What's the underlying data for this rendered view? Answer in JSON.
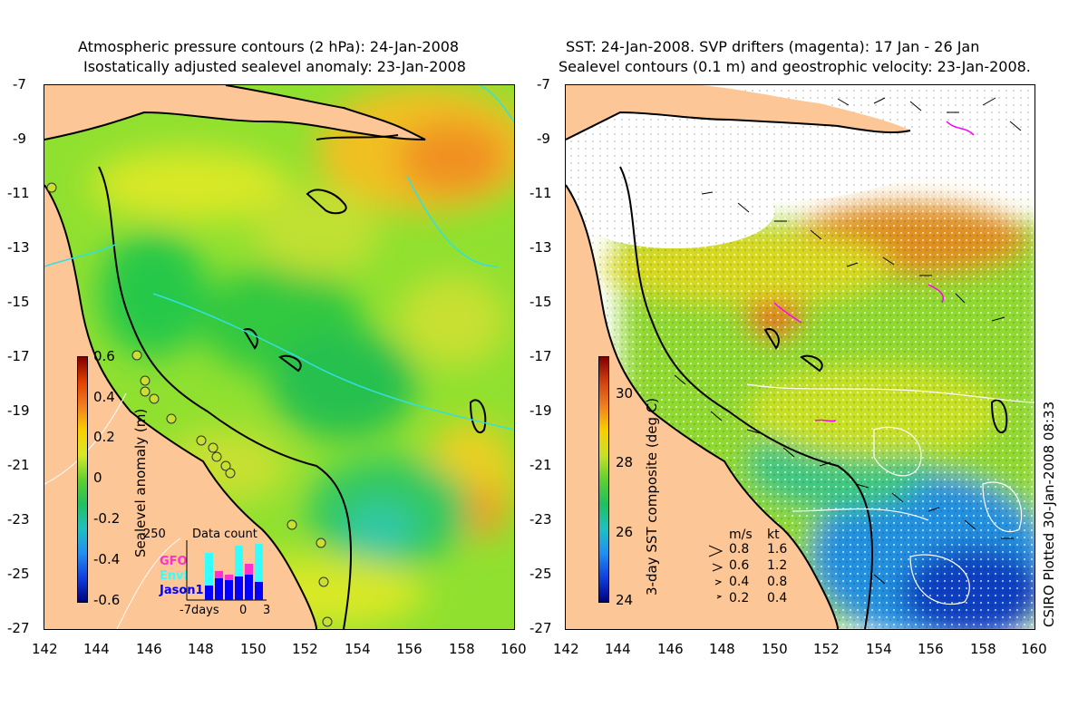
{
  "left": {
    "title_line1": "Atmospheric pressure contours (2 hPa): 24-Jan-2008",
    "title_line2": "Isostatically adjusted sealevel anomaly: 23-Jan-2008",
    "colorbar_label": "Sealevel anomaly (m)",
    "colorbar_ticks": [
      "0.6",
      "0.4",
      "0.2",
      "0",
      "-0.2",
      "-0.4",
      "-0.6"
    ],
    "colorbar_range": [
      -0.6,
      0.6
    ],
    "inset": {
      "max_label": "250",
      "title": "Data count",
      "legend": [
        {
          "name": "GFO",
          "color": "#ff33cc"
        },
        {
          "name": "Envi",
          "color": "#33ffff"
        },
        {
          "name": "Jason1",
          "color": "#0000ff"
        }
      ],
      "x_labels": [
        "-7days",
        "0",
        "3"
      ]
    }
  },
  "right": {
    "title_line1": "SST: 24-Jan-2008. SVP drifters (magenta): 17 Jan - 26 Jan",
    "title_line2": "Sealevel contours (0.1 m) and geostrophic velocity: 23-Jan-2008.",
    "colorbar_label": "3-day SST composite (deg C)",
    "colorbar_ticks": [
      "30",
      "28",
      "26",
      "24"
    ],
    "velocity_legend": {
      "header": [
        "m/s",
        "kt"
      ],
      "rows": [
        [
          "0.8",
          "1.6"
        ],
        [
          "0.6",
          "1.2"
        ],
        [
          "0.4",
          "0.8"
        ],
        [
          "0.2",
          "0.4"
        ]
      ]
    },
    "plotted_label": "CSIRO Plotted 30-Jan-2008 08:33"
  },
  "axes": {
    "lat_ticks": [
      "-7",
      "-9",
      "-11",
      "-13",
      "-15",
      "-17",
      "-19",
      "-21",
      "-23",
      "-25",
      "-27"
    ],
    "lon_ticks": [
      "142",
      "144",
      "146",
      "148",
      "150",
      "152",
      "154",
      "156",
      "158",
      "160"
    ]
  },
  "colors": {
    "land": "#fdc696",
    "coast": "#000000",
    "drifter": "#ff00ff",
    "pressure_contour": "#33e0e0",
    "sealevel_contour": "#ffffff"
  }
}
